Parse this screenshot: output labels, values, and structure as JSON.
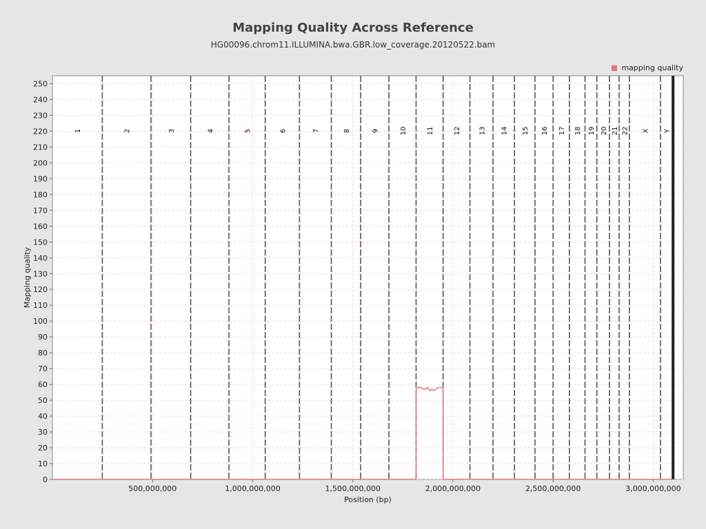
{
  "chart_data": {
    "type": "line",
    "title": "Mapping Quality Across Reference",
    "subtitle": "HG00096.chrom11.ILLUMINA.bwa.GBR.low_coverage.20120522.bam",
    "xlabel": "Position (bp)",
    "ylabel": "Mapping quality",
    "xlim": [
      0,
      3150000000
    ],
    "ylim": [
      0,
      255
    ],
    "xticks": [
      500000000,
      1000000000,
      1500000000,
      2000000000,
      2500000000,
      3000000000
    ],
    "xtick_labels": [
      "500,000,000",
      "1,000,000,000",
      "1,500,000,000",
      "2,000,000,000",
      "2,500,000,000",
      "3,000,000,000"
    ],
    "yticks": [
      0,
      10,
      20,
      30,
      40,
      50,
      60,
      70,
      80,
      90,
      100,
      110,
      120,
      130,
      140,
      150,
      160,
      170,
      180,
      190,
      200,
      210,
      220,
      230,
      240,
      250
    ],
    "legend": {
      "position": "top-right"
    },
    "grid": true,
    "chromosome_boundaries": [
      {
        "label": "1",
        "end": 249250621
      },
      {
        "label": "2",
        "end": 492449994
      },
      {
        "label": "3",
        "end": 690472424
      },
      {
        "label": "4",
        "end": 881626700
      },
      {
        "label": "5",
        "end": 1062541960
      },
      {
        "label": "6",
        "end": 1233657027
      },
      {
        "label": "7",
        "end": 1392795690
      },
      {
        "label": "8",
        "end": 1539159712
      },
      {
        "label": "9",
        "end": 1680373143
      },
      {
        "label": "10",
        "end": 1815907890
      },
      {
        "label": "11",
        "end": 1950914406
      },
      {
        "label": "12",
        "end": 2084766301
      },
      {
        "label": "13",
        "end": 2199936179
      },
      {
        "label": "14",
        "end": 2307285719
      },
      {
        "label": "15",
        "end": 2409817111
      },
      {
        "label": "16",
        "end": 2500171864
      },
      {
        "label": "17",
        "end": 2581367074
      },
      {
        "label": "18",
        "end": 2659444322
      },
      {
        "label": "19",
        "end": 2718573305
      },
      {
        "label": "20",
        "end": 2781598825
      },
      {
        "label": "21",
        "end": 2829728720
      },
      {
        "label": "22",
        "end": 2881033286
      },
      {
        "label": "X",
        "end": 3036303846
      },
      {
        "label": "Y",
        "end": 3095677412
      }
    ],
    "series": [
      {
        "name": "mapping quality",
        "color": "#e8707c",
        "x": [
          0,
          1815900000,
          1816000000,
          1818000000,
          1825000000,
          1840000000,
          1855000000,
          1865000000,
          1875000000,
          1885000000,
          1895000000,
          1905000000,
          1915000000,
          1925000000,
          1935000000,
          1945000000,
          1950800000,
          1950900000,
          3095677412
        ],
        "y": [
          0,
          0,
          55,
          57,
          58,
          58,
          57,
          57,
          58,
          56,
          57,
          56,
          57,
          58,
          58,
          58,
          58,
          0,
          0
        ]
      }
    ]
  }
}
